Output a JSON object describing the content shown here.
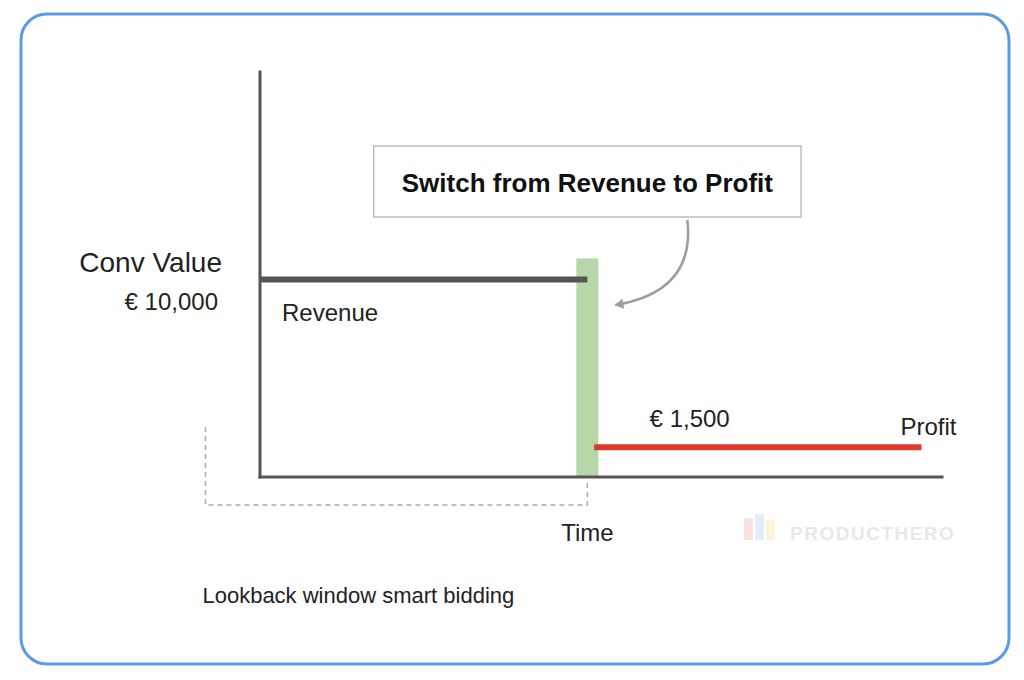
{
  "chart_data": {
    "type": "line",
    "ylabel": "Conv Value",
    "xlabel": "Time",
    "xlim": [
      0,
      100
    ],
    "ylim": [
      0,
      20500
    ],
    "yticks": [
      {
        "value": 10000,
        "label": "€ 10,000"
      }
    ],
    "tick_labels": "y",
    "series": [
      {
        "name": "Revenue",
        "color": "#555555",
        "x": [
          0,
          48
        ],
        "values": [
          10000,
          10000
        ]
      },
      {
        "name": "Profit",
        "color": "#e0392f",
        "x": [
          49,
          97
        ],
        "values": [
          1500,
          1500
        ]
      }
    ],
    "annotations": [
      {
        "text": "Switch from Revenue to Profit",
        "x": 48
      },
      {
        "text": "€ 1,500",
        "x": 63,
        "y": 1500
      }
    ],
    "lookback_window": {
      "label": "Lookback window smart bidding",
      "x": [
        -8,
        48
      ]
    },
    "watermark": "PRODUCTHERO"
  }
}
